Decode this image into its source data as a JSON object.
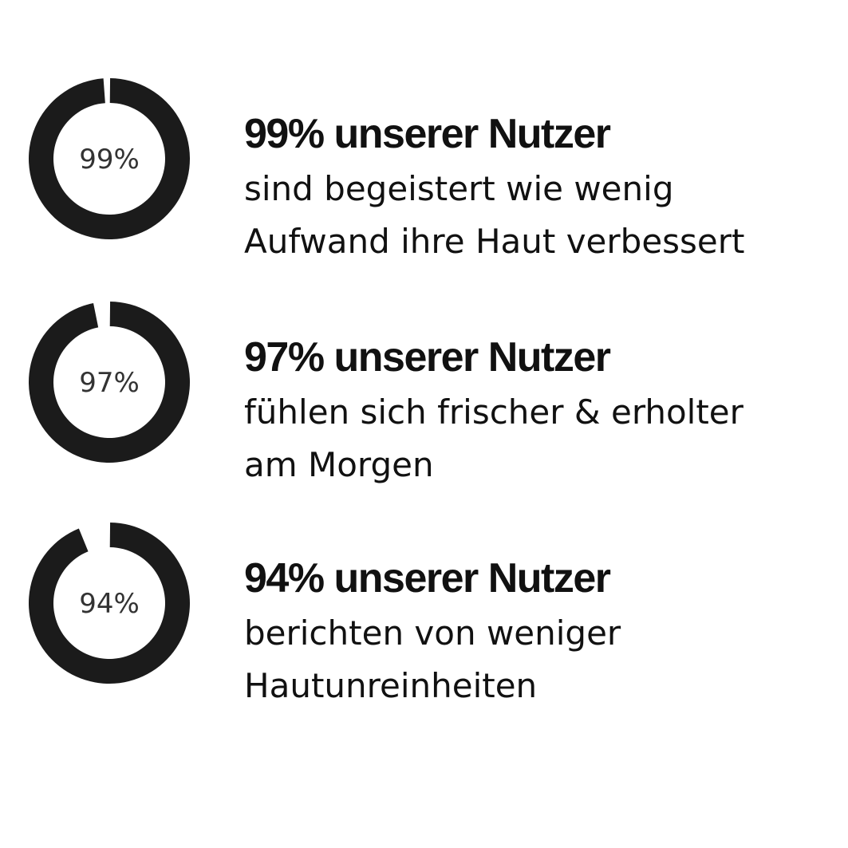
{
  "chart_data": {
    "type": "pie",
    "colors": {
      "ring": "#1b1b1b",
      "background": "#ffffff",
      "label": "#333333"
    },
    "stats": [
      {
        "value": 99,
        "ring_label": "99%",
        "headline": "99% unserer Nutzer",
        "lines": [
          "sind begeistert wie wenig",
          "Aufwand ihre Haut verbessert"
        ]
      },
      {
        "value": 97,
        "ring_label": "97%",
        "headline": "97% unserer Nutzer",
        "lines": [
          "fühlen sich frischer & erholter",
          "am Morgen"
        ]
      },
      {
        "value": 94,
        "ring_label": "94%",
        "headline": "94% unserer Nutzer",
        "lines": [
          "berichten von weniger",
          "Hautunreinheiten"
        ]
      }
    ]
  }
}
